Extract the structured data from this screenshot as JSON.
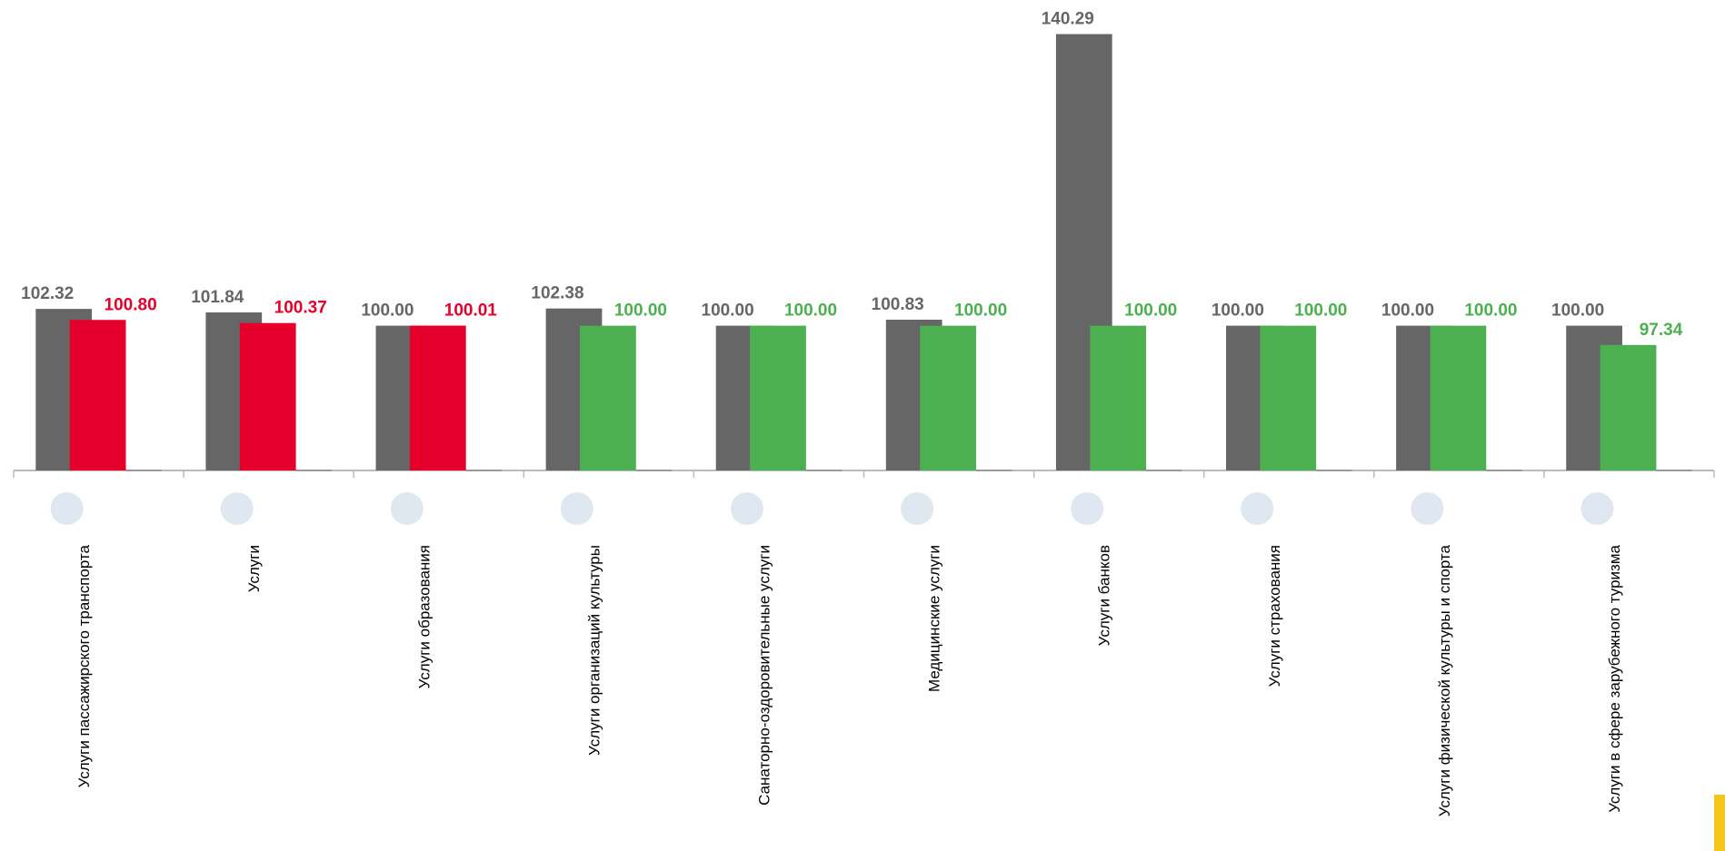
{
  "chart_data": {
    "type": "bar",
    "categories": [
      "Услуги пассажирского транспорта",
      "Услуги",
      "Услуги образования",
      "Услуги организаций культуры",
      "Санаторно-оздоровительные услуги",
      "Медицинские услуги",
      "Услуги банков",
      "Услуги страхования",
      "Услуги физической культуры и спорта",
      "Услуги в сфере зарубежного туризма"
    ],
    "series": [
      {
        "color": "#666666",
        "values": [
          102.32,
          101.84,
          100.0,
          102.38,
          100.0,
          100.83,
          140.29,
          100.0,
          100.0,
          100.0
        ],
        "value_labels": [
          "102.32",
          "101.84",
          "100.00",
          "102.38",
          "100.00",
          "100.83",
          "140.29",
          "100.00",
          "100.00",
          "100.00"
        ]
      },
      {
        "colors": [
          "#e4002b",
          "#e4002b",
          "#e4002b",
          "#4caf50",
          "#4caf50",
          "#4caf50",
          "#4caf50",
          "#4caf50",
          "#4caf50",
          "#4caf50"
        ],
        "values": [
          100.8,
          100.37,
          100.01,
          100.0,
          100.0,
          100.0,
          100.0,
          100.0,
          100.0,
          97.34
        ],
        "value_labels": [
          "100.80",
          "100.37",
          "100.01",
          "100.00",
          "100.00",
          "100.00",
          "100.00",
          "100.00",
          "100.00",
          "97.34"
        ]
      }
    ],
    "ylim": [
      80,
      145
    ]
  }
}
